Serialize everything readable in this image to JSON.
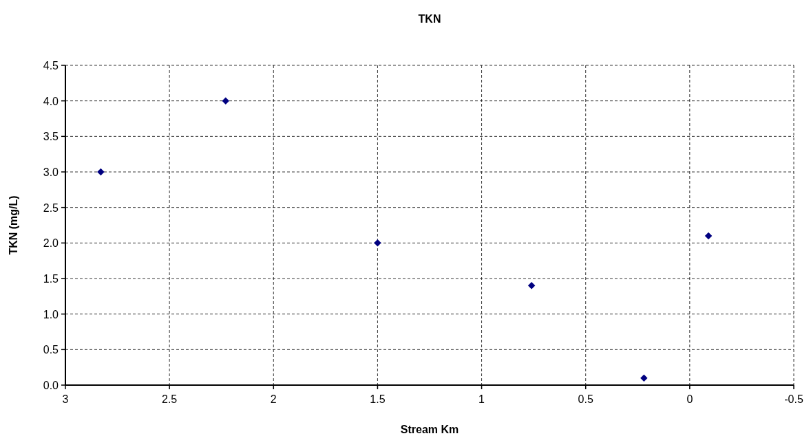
{
  "chart_data": {
    "type": "scatter",
    "title": "TKN",
    "xlabel": "Stream Km",
    "ylabel": "TKN (mg/L)",
    "x": [
      2.83,
      2.23,
      1.5,
      0.76,
      0.22,
      -0.09
    ],
    "series": [
      {
        "color": "#000080",
        "values": [
          3.0,
          4.0,
          2.0,
          1.4,
          0.1,
          2.1
        ]
      }
    ],
    "xlim": [
      3,
      -0.5
    ],
    "xticks": [
      3,
      2.5,
      2,
      1.5,
      1,
      0.5,
      0,
      -0.5
    ],
    "ylim": [
      0,
      4.5
    ],
    "yticks": [
      {
        "value": 0,
        "label": "0.0"
      },
      0.5,
      {
        "value": 1,
        "label": "1.0"
      },
      1.5,
      {
        "value": 2,
        "label": "2.0"
      },
      2.5,
      {
        "value": 3,
        "label": "3.0"
      },
      3.5,
      {
        "value": 4,
        "label": "4.0"
      },
      4.5
    ],
    "grid": true,
    "marker": "diamond"
  }
}
